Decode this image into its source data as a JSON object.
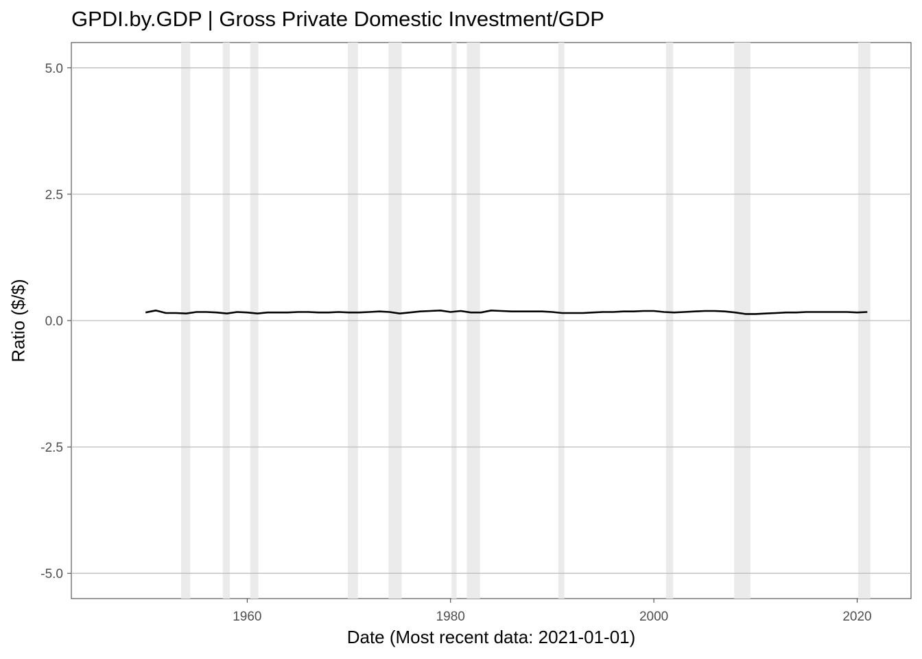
{
  "chart_data": {
    "type": "line",
    "title": "GPDI.by.GDP | Gross Private Domestic Investment/GDP",
    "xlabel": "Date (Most recent data: 2021-01-01)",
    "ylabel": "Ratio ($/$)",
    "xlim": [
      1942.7,
      2025.3
    ],
    "ylim": [
      -5.5,
      5.5
    ],
    "x_ticks": [
      1960,
      1980,
      2000,
      2020
    ],
    "x_tick_labels": [
      "1960",
      "1980",
      "2000",
      "2020"
    ],
    "y_ticks": [
      5.0,
      2.5,
      0.0,
      -2.5,
      -5.0
    ],
    "y_tick_labels": [
      "5.0",
      "2.5",
      "0.0",
      "-2.5",
      "-5.0"
    ],
    "grid": true,
    "recessions": [
      [
        1953.5,
        1954.4
      ],
      [
        1957.6,
        1958.3
      ],
      [
        1960.3,
        1961.1
      ],
      [
        1969.9,
        1970.9
      ],
      [
        1973.9,
        1975.2
      ],
      [
        1980.1,
        1980.6
      ],
      [
        1981.6,
        1982.9
      ],
      [
        1990.6,
        1991.2
      ],
      [
        2001.2,
        2001.9
      ],
      [
        2007.9,
        2009.5
      ],
      [
        2020.1,
        2021.3
      ]
    ],
    "series": [
      {
        "color": "#000000",
        "x": [
          1950.0,
          1951.0,
          1952.0,
          1953.0,
          1954.0,
          1955.0,
          1956.0,
          1957.0,
          1958.0,
          1959.0,
          1960.0,
          1961.0,
          1962.0,
          1963.0,
          1964.0,
          1965.0,
          1966.0,
          1967.0,
          1968.0,
          1969.0,
          1970.0,
          1971.0,
          1972.0,
          1973.0,
          1974.0,
          1975.0,
          1976.0,
          1977.0,
          1978.0,
          1979.0,
          1980.0,
          1981.0,
          1982.0,
          1983.0,
          1984.0,
          1985.0,
          1986.0,
          1987.0,
          1988.0,
          1989.0,
          1990.0,
          1991.0,
          1992.0,
          1993.0,
          1994.0,
          1995.0,
          1996.0,
          1997.0,
          1998.0,
          1999.0,
          2000.0,
          2001.0,
          2002.0,
          2003.0,
          2004.0,
          2005.0,
          2006.0,
          2007.0,
          2008.0,
          2009.0,
          2010.0,
          2011.0,
          2012.0,
          2013.0,
          2014.0,
          2015.0,
          2016.0,
          2017.0,
          2018.0,
          2019.0,
          2020.0,
          2021.0
        ],
        "values": [
          0.16,
          0.2,
          0.15,
          0.15,
          0.14,
          0.17,
          0.17,
          0.16,
          0.14,
          0.17,
          0.16,
          0.14,
          0.16,
          0.16,
          0.16,
          0.17,
          0.17,
          0.16,
          0.16,
          0.17,
          0.16,
          0.16,
          0.17,
          0.18,
          0.17,
          0.14,
          0.16,
          0.18,
          0.19,
          0.2,
          0.17,
          0.19,
          0.16,
          0.16,
          0.2,
          0.19,
          0.18,
          0.18,
          0.18,
          0.18,
          0.17,
          0.15,
          0.15,
          0.15,
          0.16,
          0.17,
          0.17,
          0.18,
          0.18,
          0.19,
          0.19,
          0.17,
          0.16,
          0.17,
          0.18,
          0.19,
          0.19,
          0.18,
          0.16,
          0.13,
          0.13,
          0.14,
          0.15,
          0.16,
          0.16,
          0.17,
          0.17,
          0.17,
          0.17,
          0.17,
          0.16,
          0.17
        ]
      }
    ]
  }
}
